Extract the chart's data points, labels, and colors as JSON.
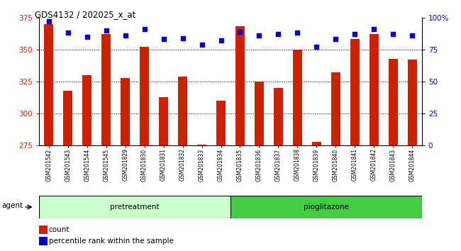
{
  "title": "GDS4132 / 202025_x_at",
  "samples": [
    "GSM201542",
    "GSM201543",
    "GSM201544",
    "GSM201545",
    "GSM201829",
    "GSM201830",
    "GSM201831",
    "GSM201832",
    "GSM201833",
    "GSM201834",
    "GSM201835",
    "GSM201836",
    "GSM201837",
    "GSM201838",
    "GSM201839",
    "GSM201840",
    "GSM201841",
    "GSM201842",
    "GSM201843",
    "GSM201844"
  ],
  "counts": [
    370,
    318,
    330,
    362,
    328,
    352,
    313,
    329,
    276,
    310,
    368,
    325,
    320,
    350,
    278,
    332,
    358,
    362,
    343,
    342
  ],
  "percentiles": [
    97,
    88,
    85,
    90,
    86,
    91,
    83,
    84,
    79,
    82,
    89,
    86,
    87,
    88,
    77,
    83,
    87,
    91,
    87,
    86
  ],
  "group1_label": "pretreatment",
  "group2_label": "pioglitazone",
  "group1_count": 10,
  "group2_count": 10,
  "bar_color": "#cc2200",
  "dot_color": "#0000cc",
  "ymin": 275,
  "ymax": 375,
  "yticks": [
    275,
    300,
    325,
    350,
    375
  ],
  "y2min": 0,
  "y2max": 100,
  "y2ticks": [
    0,
    25,
    50,
    75,
    100
  ],
  "group1_bg": "#ccffcc",
  "group2_bg": "#44cc44",
  "agent_label": "agent",
  "legend_count": "count",
  "legend_pct": "percentile rank within the sample",
  "bar_width": 0.5
}
